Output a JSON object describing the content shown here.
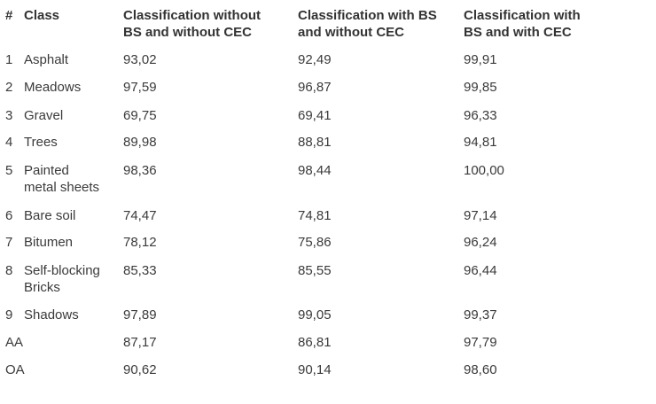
{
  "table": {
    "headers": {
      "num": "#",
      "class": "Class",
      "col1_line1": "Classification without",
      "col1_line2": "BS and without CEC",
      "col2_line1": "Classification with BS",
      "col2_line2": "and without CEC",
      "col3_line1": "Classification with",
      "col3_line2": "BS and with CEC"
    },
    "rows": [
      {
        "num": "1",
        "class_line1": "Asphalt",
        "class_line2": "",
        "c1": "93,02",
        "c2": "92,49",
        "c3": "99,91"
      },
      {
        "num": "2",
        "class_line1": "Meadows",
        "class_line2": "",
        "c1": "97,59",
        "c2": "96,87",
        "c3": "99,85"
      },
      {
        "num": "3",
        "class_line1": "Gravel",
        "class_line2": "",
        "c1": "69,75",
        "c2": "69,41",
        "c3": "96,33"
      },
      {
        "num": "4",
        "class_line1": "Trees",
        "class_line2": "",
        "c1": "89,98",
        "c2": "88,81",
        "c3": "94,81"
      },
      {
        "num": "5",
        "class_line1": "Painted",
        "class_line2": "metal sheets",
        "c1": "98,36",
        "c2": "98,44",
        "c3": "100,00"
      },
      {
        "num": "6",
        "class_line1": "Bare soil",
        "class_line2": "",
        "c1": "74,47",
        "c2": "74,81",
        "c3": "97,14"
      },
      {
        "num": "7",
        "class_line1": "Bitumen",
        "class_line2": "",
        "c1": "78,12",
        "c2": "75,86",
        "c3": "96,24"
      },
      {
        "num": "8",
        "class_line1": "Self-blocking",
        "class_line2": "Bricks",
        "c1": "85,33",
        "c2": "85,55",
        "c3": "96,44"
      },
      {
        "num": "9",
        "class_line1": "Shadows",
        "class_line2": "",
        "c1": "97,89",
        "c2": "99,05",
        "c3": "99,37"
      }
    ],
    "summary": [
      {
        "label": "AA",
        "c1": "87,17",
        "c2": "86,81",
        "c3": "97,79"
      },
      {
        "label": "OA",
        "c1": "90,62",
        "c2": "90,14",
        "c3": "98,60"
      }
    ]
  }
}
